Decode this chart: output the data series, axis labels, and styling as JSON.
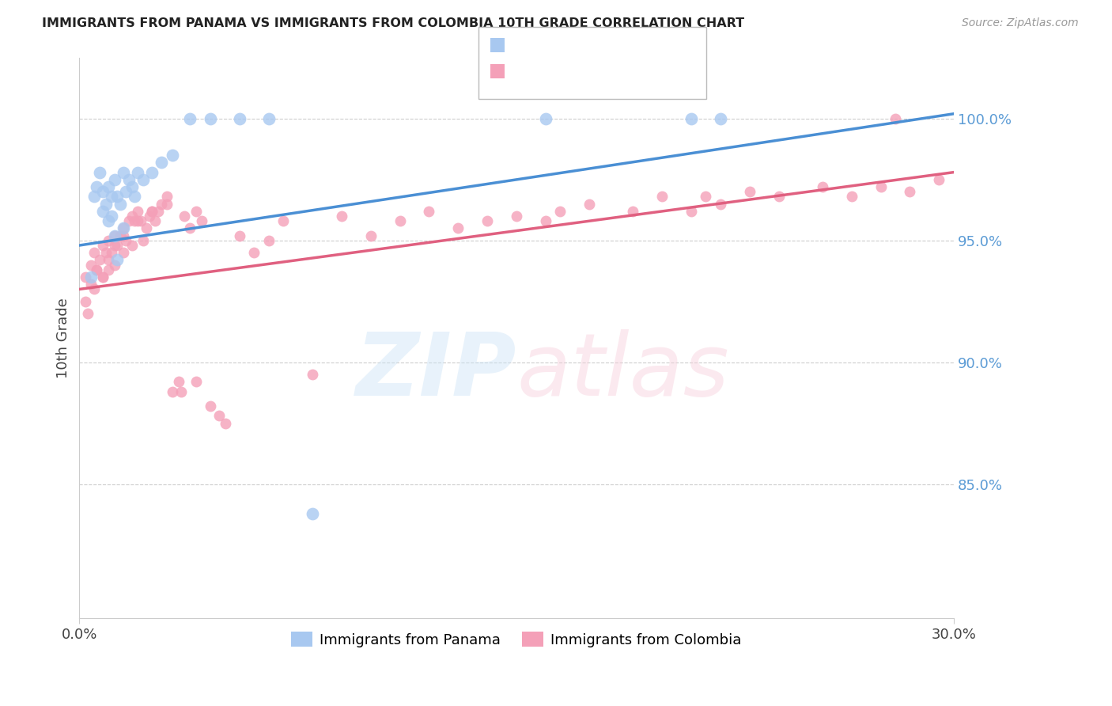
{
  "title": "IMMIGRANTS FROM PANAMA VS IMMIGRANTS FROM COLOMBIA 10TH GRADE CORRELATION CHART",
  "source": "Source: ZipAtlas.com",
  "ylabel": "10th Grade",
  "right_yticks": [
    0.85,
    0.9,
    0.95,
    1.0
  ],
  "right_yticklabels": [
    "85.0%",
    "90.0%",
    "95.0%",
    "100.0%"
  ],
  "panama_color": "#a8c8f0",
  "colombia_color": "#f4a0b8",
  "trendline_panama_color": "#4a8fd4",
  "trendline_colombia_color": "#e06080",
  "xlim": [
    0.0,
    0.3
  ],
  "ylim": [
    0.795,
    1.025
  ],
  "panama_x": [
    0.004,
    0.005,
    0.006,
    0.007,
    0.008,
    0.008,
    0.009,
    0.01,
    0.01,
    0.011,
    0.011,
    0.012,
    0.012,
    0.013,
    0.013,
    0.014,
    0.015,
    0.015,
    0.016,
    0.017,
    0.018,
    0.019,
    0.02,
    0.022,
    0.025,
    0.028,
    0.032,
    0.038,
    0.045,
    0.055,
    0.065,
    0.08,
    0.16,
    0.21,
    0.22
  ],
  "panama_y": [
    0.935,
    0.968,
    0.972,
    0.978,
    0.962,
    0.97,
    0.965,
    0.958,
    0.972,
    0.968,
    0.96,
    0.975,
    0.952,
    0.968,
    0.942,
    0.965,
    0.978,
    0.955,
    0.97,
    0.975,
    0.972,
    0.968,
    0.978,
    0.975,
    0.978,
    0.982,
    0.985,
    1.0,
    1.0,
    1.0,
    1.0,
    0.838,
    1.0,
    1.0,
    1.0
  ],
  "colombia_x": [
    0.002,
    0.003,
    0.004,
    0.005,
    0.005,
    0.006,
    0.007,
    0.008,
    0.008,
    0.009,
    0.01,
    0.01,
    0.011,
    0.012,
    0.012,
    0.013,
    0.014,
    0.015,
    0.015,
    0.016,
    0.017,
    0.018,
    0.018,
    0.019,
    0.02,
    0.021,
    0.022,
    0.023,
    0.024,
    0.025,
    0.026,
    0.027,
    0.028,
    0.03,
    0.032,
    0.034,
    0.036,
    0.038,
    0.04,
    0.042,
    0.045,
    0.048,
    0.05,
    0.055,
    0.06,
    0.065,
    0.07,
    0.08,
    0.09,
    0.1,
    0.11,
    0.12,
    0.13,
    0.14,
    0.15,
    0.16,
    0.165,
    0.175,
    0.19,
    0.2,
    0.21,
    0.215,
    0.22,
    0.23,
    0.24,
    0.255,
    0.265,
    0.275,
    0.285,
    0.295,
    0.002,
    0.004,
    0.006,
    0.008,
    0.01,
    0.012,
    0.015,
    0.02,
    0.025,
    0.03,
    0.035,
    0.04,
    0.28
  ],
  "colombia_y": [
    0.935,
    0.92,
    0.94,
    0.945,
    0.93,
    0.938,
    0.942,
    0.948,
    0.935,
    0.945,
    0.95,
    0.938,
    0.945,
    0.952,
    0.94,
    0.948,
    0.952,
    0.955,
    0.945,
    0.95,
    0.958,
    0.96,
    0.948,
    0.958,
    0.962,
    0.958,
    0.95,
    0.955,
    0.96,
    0.962,
    0.958,
    0.962,
    0.965,
    0.968,
    0.888,
    0.892,
    0.96,
    0.955,
    0.962,
    0.958,
    0.882,
    0.878,
    0.875,
    0.952,
    0.945,
    0.95,
    0.958,
    0.895,
    0.96,
    0.952,
    0.958,
    0.962,
    0.955,
    0.958,
    0.96,
    0.958,
    0.962,
    0.965,
    0.962,
    0.968,
    0.962,
    0.968,
    0.965,
    0.97,
    0.968,
    0.972,
    0.968,
    0.972,
    0.97,
    0.975,
    0.925,
    0.932,
    0.938,
    0.935,
    0.942,
    0.948,
    0.952,
    0.958,
    0.962,
    0.965,
    0.888,
    0.892,
    1.0
  ]
}
